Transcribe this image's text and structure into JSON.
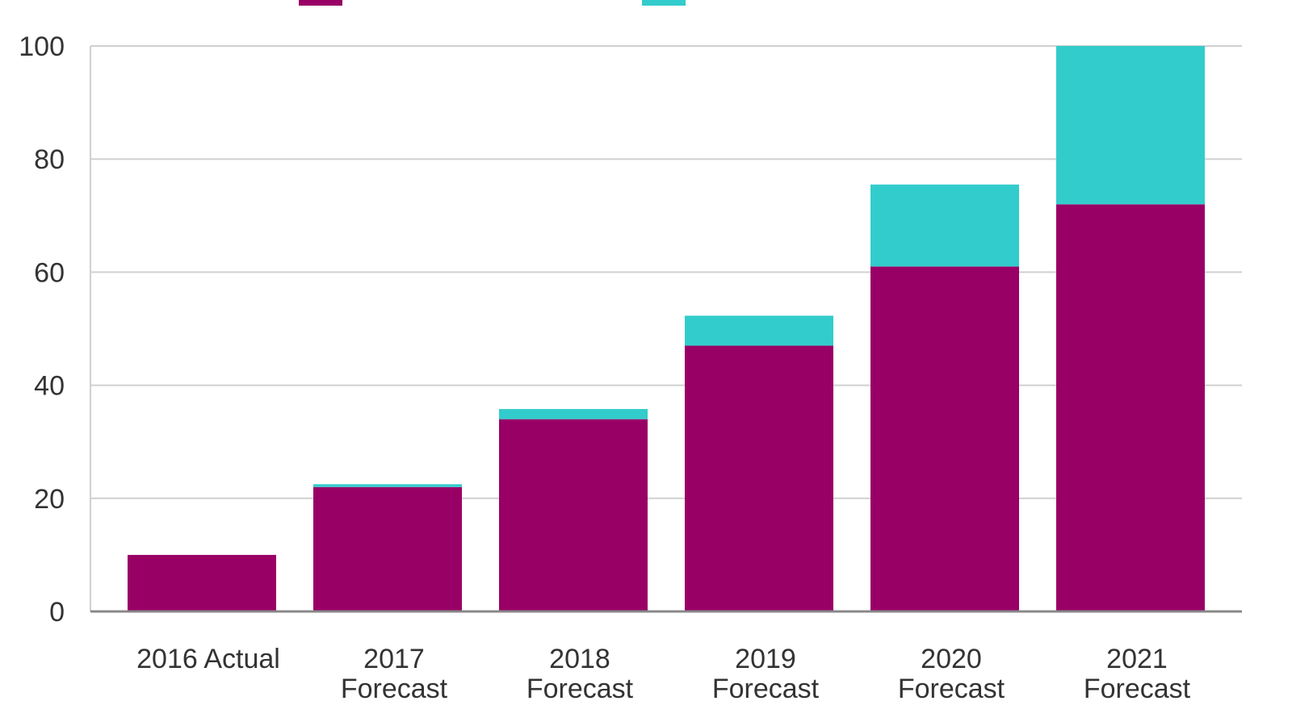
{
  "chart_data": {
    "type": "bar",
    "stacked": true,
    "title": "",
    "xlabel": "",
    "ylabel": "",
    "ylim": [
      0,
      100
    ],
    "yticks": [
      0,
      20,
      40,
      60,
      80,
      100
    ],
    "grid": true,
    "legend_position": "top",
    "categories": [
      [
        "2016 Actual"
      ],
      [
        "2017",
        "Forecast"
      ],
      [
        "2018",
        "Forecast"
      ],
      [
        "2019",
        "Forecast"
      ],
      [
        "2020",
        "Forecast"
      ],
      [
        "2021",
        "Forecast"
      ]
    ],
    "series": [
      {
        "name": "",
        "color": "#990066",
        "values": [
          10,
          22,
          34,
          47,
          61,
          72
        ]
      },
      {
        "name": "",
        "color": "#33CCCC",
        "values": [
          0,
          0.5,
          1.8,
          5.3,
          14.5,
          28
        ]
      }
    ]
  },
  "colors": {
    "axis": "#888888",
    "grid": "#d0d0d0",
    "text": "#333333"
  }
}
